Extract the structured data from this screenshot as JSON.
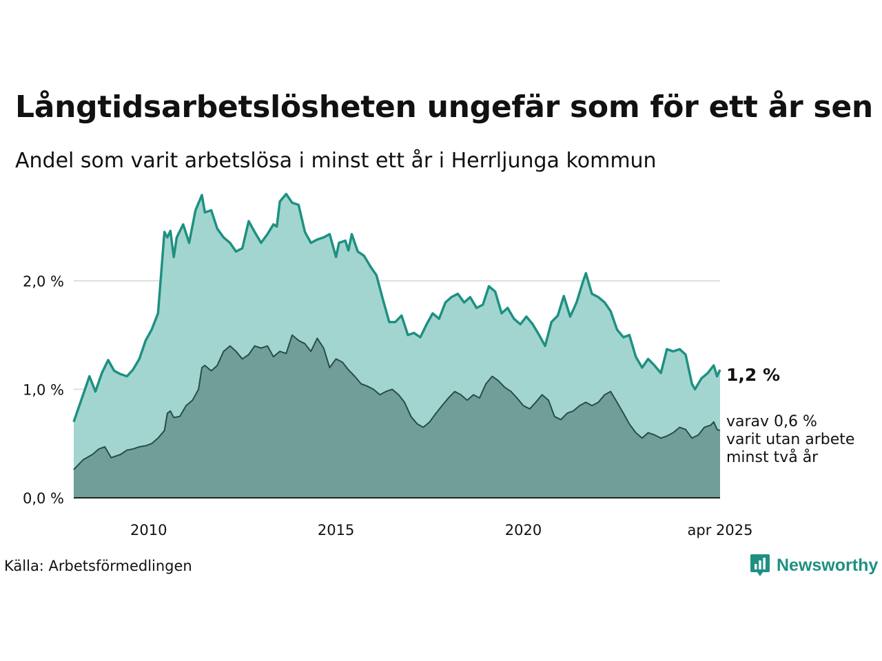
{
  "title": "Långtidsarbetslösheten ungefär som för ett år sen",
  "subtitle": "Andel som varit arbetslösa i minst ett år i Herrljunga kommun",
  "source": "Källa: Arbetsförmedlingen",
  "logo_text": "Newsworthy",
  "colors": {
    "long_line": "#1e9082",
    "long_fill": "#a3d5d0",
    "two_year_line": "#2a4c48",
    "two_year_fill": "#709e99",
    "gridline": "#dddddd",
    "logo": "#1e9082"
  },
  "end_labels": {
    "main": "1,2 %",
    "secondary": [
      "varav 0,6 %",
      "varit utan arbete",
      "minst två år"
    ]
  },
  "chart_data": {
    "type": "area",
    "title": "Långtidsarbetslösheten ungefär som för ett år sen",
    "subtitle": "Andel som varit arbetslösa i minst ett år i Herrljunga kommun",
    "xlabel": "",
    "ylabel": "",
    "ylim": [
      0,
      2.9
    ],
    "xlim": [
      2008.0,
      2025.25
    ],
    "y_ticks": [
      {
        "value": 0,
        "label": "0,0 %"
      },
      {
        "value": 1,
        "label": "1,0 %"
      },
      {
        "value": 2,
        "label": "2,0 %"
      }
    ],
    "x_ticks": [
      {
        "value": 2010.0,
        "label": "2010"
      },
      {
        "value": 2015.0,
        "label": "2015"
      },
      {
        "value": 2020.0,
        "label": "2020"
      },
      {
        "value": 2025.25,
        "label": "apr 2025"
      }
    ],
    "grid": true,
    "legend": "none",
    "series": [
      {
        "name": "1,2 %",
        "values": [
          [
            2008.0,
            0.7
          ],
          [
            2008.25,
            0.95
          ],
          [
            2008.42,
            1.12
          ],
          [
            2008.58,
            0.98
          ],
          [
            2008.75,
            1.15
          ],
          [
            2008.92,
            1.27
          ],
          [
            2009.08,
            1.17
          ],
          [
            2009.25,
            1.14
          ],
          [
            2009.42,
            1.12
          ],
          [
            2009.58,
            1.18
          ],
          [
            2009.75,
            1.28
          ],
          [
            2009.92,
            1.45
          ],
          [
            2010.08,
            1.55
          ],
          [
            2010.25,
            1.7
          ],
          [
            2010.33,
            2.05
          ],
          [
            2010.42,
            2.45
          ],
          [
            2010.5,
            2.4
          ],
          [
            2010.58,
            2.46
          ],
          [
            2010.67,
            2.22
          ],
          [
            2010.75,
            2.4
          ],
          [
            2010.92,
            2.52
          ],
          [
            2011.08,
            2.35
          ],
          [
            2011.25,
            2.65
          ],
          [
            2011.42,
            2.79
          ],
          [
            2011.5,
            2.63
          ],
          [
            2011.67,
            2.65
          ],
          [
            2011.83,
            2.48
          ],
          [
            2012.0,
            2.4
          ],
          [
            2012.17,
            2.35
          ],
          [
            2012.33,
            2.27
          ],
          [
            2012.5,
            2.3
          ],
          [
            2012.67,
            2.55
          ],
          [
            2012.83,
            2.45
          ],
          [
            2013.0,
            2.35
          ],
          [
            2013.17,
            2.43
          ],
          [
            2013.33,
            2.52
          ],
          [
            2013.42,
            2.5
          ],
          [
            2013.5,
            2.73
          ],
          [
            2013.67,
            2.8
          ],
          [
            2013.83,
            2.72
          ],
          [
            2014.0,
            2.7
          ],
          [
            2014.17,
            2.45
          ],
          [
            2014.33,
            2.35
          ],
          [
            2014.5,
            2.38
          ],
          [
            2014.67,
            2.4
          ],
          [
            2014.83,
            2.43
          ],
          [
            2015.0,
            2.22
          ],
          [
            2015.08,
            2.35
          ],
          [
            2015.25,
            2.37
          ],
          [
            2015.33,
            2.28
          ],
          [
            2015.42,
            2.43
          ],
          [
            2015.58,
            2.27
          ],
          [
            2015.75,
            2.23
          ],
          [
            2015.92,
            2.13
          ],
          [
            2016.08,
            2.05
          ],
          [
            2016.25,
            1.83
          ],
          [
            2016.42,
            1.62
          ],
          [
            2016.58,
            1.62
          ],
          [
            2016.75,
            1.68
          ],
          [
            2016.92,
            1.5
          ],
          [
            2017.08,
            1.52
          ],
          [
            2017.25,
            1.48
          ],
          [
            2017.42,
            1.6
          ],
          [
            2017.58,
            1.7
          ],
          [
            2017.75,
            1.65
          ],
          [
            2017.92,
            1.8
          ],
          [
            2018.08,
            1.85
          ],
          [
            2018.25,
            1.88
          ],
          [
            2018.42,
            1.8
          ],
          [
            2018.58,
            1.85
          ],
          [
            2018.75,
            1.75
          ],
          [
            2018.92,
            1.78
          ],
          [
            2019.08,
            1.95
          ],
          [
            2019.25,
            1.9
          ],
          [
            2019.42,
            1.7
          ],
          [
            2019.58,
            1.75
          ],
          [
            2019.75,
            1.65
          ],
          [
            2019.92,
            1.6
          ],
          [
            2020.08,
            1.67
          ],
          [
            2020.25,
            1.6
          ],
          [
            2020.42,
            1.5
          ],
          [
            2020.58,
            1.4
          ],
          [
            2020.75,
            1.62
          ],
          [
            2020.92,
            1.68
          ],
          [
            2021.08,
            1.86
          ],
          [
            2021.25,
            1.67
          ],
          [
            2021.42,
            1.8
          ],
          [
            2021.58,
            1.98
          ],
          [
            2021.67,
            2.07
          ],
          [
            2021.83,
            1.88
          ],
          [
            2022.0,
            1.85
          ],
          [
            2022.17,
            1.8
          ],
          [
            2022.33,
            1.72
          ],
          [
            2022.5,
            1.55
          ],
          [
            2022.67,
            1.48
          ],
          [
            2022.83,
            1.5
          ],
          [
            2023.0,
            1.3
          ],
          [
            2023.17,
            1.2
          ],
          [
            2023.33,
            1.28
          ],
          [
            2023.5,
            1.22
          ],
          [
            2023.67,
            1.15
          ],
          [
            2023.83,
            1.37
          ],
          [
            2024.0,
            1.35
          ],
          [
            2024.17,
            1.37
          ],
          [
            2024.33,
            1.32
          ],
          [
            2024.5,
            1.05
          ],
          [
            2024.58,
            1.0
          ],
          [
            2024.75,
            1.1
          ],
          [
            2024.92,
            1.15
          ],
          [
            2025.08,
            1.22
          ],
          [
            2025.17,
            1.12
          ],
          [
            2025.25,
            1.18
          ]
        ]
      },
      {
        "name": "varav 0,6 %",
        "values": [
          [
            2008.0,
            0.26
          ],
          [
            2008.25,
            0.35
          ],
          [
            2008.5,
            0.4
          ],
          [
            2008.67,
            0.45
          ],
          [
            2008.83,
            0.47
          ],
          [
            2009.0,
            0.37
          ],
          [
            2009.25,
            0.4
          ],
          [
            2009.42,
            0.44
          ],
          [
            2009.58,
            0.45
          ],
          [
            2009.75,
            0.47
          ],
          [
            2009.92,
            0.48
          ],
          [
            2010.08,
            0.5
          ],
          [
            2010.25,
            0.55
          ],
          [
            2010.42,
            0.62
          ],
          [
            2010.5,
            0.78
          ],
          [
            2010.58,
            0.8
          ],
          [
            2010.67,
            0.74
          ],
          [
            2010.83,
            0.75
          ],
          [
            2011.0,
            0.85
          ],
          [
            2011.17,
            0.9
          ],
          [
            2011.33,
            1.0
          ],
          [
            2011.42,
            1.2
          ],
          [
            2011.5,
            1.22
          ],
          [
            2011.67,
            1.17
          ],
          [
            2011.83,
            1.22
          ],
          [
            2012.0,
            1.35
          ],
          [
            2012.17,
            1.4
          ],
          [
            2012.33,
            1.35
          ],
          [
            2012.5,
            1.28
          ],
          [
            2012.67,
            1.32
          ],
          [
            2012.83,
            1.4
          ],
          [
            2013.0,
            1.38
          ],
          [
            2013.17,
            1.4
          ],
          [
            2013.33,
            1.3
          ],
          [
            2013.5,
            1.35
          ],
          [
            2013.67,
            1.33
          ],
          [
            2013.83,
            1.5
          ],
          [
            2014.0,
            1.45
          ],
          [
            2014.17,
            1.42
          ],
          [
            2014.33,
            1.35
          ],
          [
            2014.5,
            1.47
          ],
          [
            2014.67,
            1.38
          ],
          [
            2014.83,
            1.2
          ],
          [
            2015.0,
            1.28
          ],
          [
            2015.17,
            1.25
          ],
          [
            2015.33,
            1.18
          ],
          [
            2015.5,
            1.12
          ],
          [
            2015.67,
            1.05
          ],
          [
            2015.83,
            1.03
          ],
          [
            2016.0,
            1.0
          ],
          [
            2016.17,
            0.95
          ],
          [
            2016.33,
            0.98
          ],
          [
            2016.5,
            1.0
          ],
          [
            2016.67,
            0.95
          ],
          [
            2016.83,
            0.88
          ],
          [
            2017.0,
            0.75
          ],
          [
            2017.17,
            0.68
          ],
          [
            2017.33,
            0.65
          ],
          [
            2017.5,
            0.7
          ],
          [
            2017.67,
            0.78
          ],
          [
            2017.83,
            0.85
          ],
          [
            2018.0,
            0.92
          ],
          [
            2018.17,
            0.98
          ],
          [
            2018.33,
            0.95
          ],
          [
            2018.5,
            0.9
          ],
          [
            2018.67,
            0.95
          ],
          [
            2018.83,
            0.92
          ],
          [
            2019.0,
            1.05
          ],
          [
            2019.17,
            1.12
          ],
          [
            2019.33,
            1.08
          ],
          [
            2019.5,
            1.02
          ],
          [
            2019.67,
            0.98
          ],
          [
            2019.83,
            0.92
          ],
          [
            2020.0,
            0.85
          ],
          [
            2020.17,
            0.82
          ],
          [
            2020.33,
            0.88
          ],
          [
            2020.5,
            0.95
          ],
          [
            2020.67,
            0.9
          ],
          [
            2020.83,
            0.75
          ],
          [
            2021.0,
            0.72
          ],
          [
            2021.17,
            0.78
          ],
          [
            2021.33,
            0.8
          ],
          [
            2021.5,
            0.85
          ],
          [
            2021.67,
            0.88
          ],
          [
            2021.83,
            0.85
          ],
          [
            2022.0,
            0.88
          ],
          [
            2022.17,
            0.95
          ],
          [
            2022.33,
            0.98
          ],
          [
            2022.5,
            0.88
          ],
          [
            2022.67,
            0.78
          ],
          [
            2022.83,
            0.68
          ],
          [
            2023.0,
            0.6
          ],
          [
            2023.17,
            0.55
          ],
          [
            2023.33,
            0.6
          ],
          [
            2023.5,
            0.58
          ],
          [
            2023.67,
            0.55
          ],
          [
            2023.83,
            0.57
          ],
          [
            2024.0,
            0.6
          ],
          [
            2024.17,
            0.65
          ],
          [
            2024.33,
            0.63
          ],
          [
            2024.5,
            0.55
          ],
          [
            2024.67,
            0.58
          ],
          [
            2024.83,
            0.65
          ],
          [
            2025.0,
            0.67
          ],
          [
            2025.08,
            0.7
          ],
          [
            2025.17,
            0.63
          ],
          [
            2025.25,
            0.62
          ]
        ]
      }
    ]
  }
}
